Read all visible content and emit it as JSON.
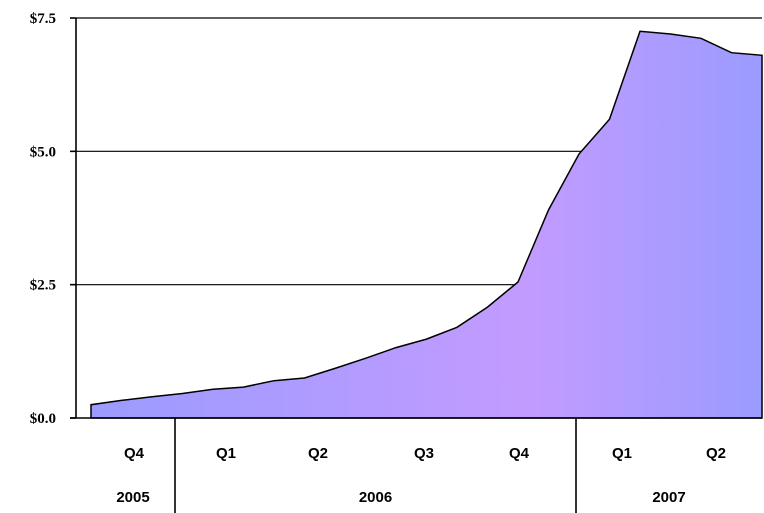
{
  "chart_data": {
    "type": "area",
    "title": "",
    "xlabel": "",
    "ylabel": "",
    "ylim": [
      0,
      7.5
    ],
    "y_ticks": [
      "$0.0",
      "$2.5",
      "$5.0",
      "$7.5"
    ],
    "y_tick_values": [
      0,
      2.5,
      5.0,
      7.5
    ],
    "grid": "horizontal",
    "fill_gradient": [
      "#9b9bff",
      "#c39bff",
      "#9b9bff"
    ],
    "quarters": [
      {
        "label": "Q4",
        "year": "2005"
      },
      {
        "label": "Q1",
        "year": "2006"
      },
      {
        "label": "Q2",
        "year": "2006"
      },
      {
        "label": "Q3",
        "year": "2006"
      },
      {
        "label": "Q4",
        "year": "2006"
      },
      {
        "label": "Q1",
        "year": "2007"
      },
      {
        "label": "Q2",
        "year": "2007"
      }
    ],
    "years": [
      "2005",
      "2006",
      "2007"
    ],
    "series": [
      {
        "values": [
          0.25,
          0.33,
          0.4,
          0.46,
          0.54,
          0.58,
          0.7,
          0.75,
          0.93,
          1.12,
          1.32,
          1.48,
          1.7,
          2.08,
          2.55,
          3.9,
          4.95,
          5.6,
          7.25,
          7.2,
          7.12,
          6.85,
          6.8
        ]
      }
    ]
  }
}
